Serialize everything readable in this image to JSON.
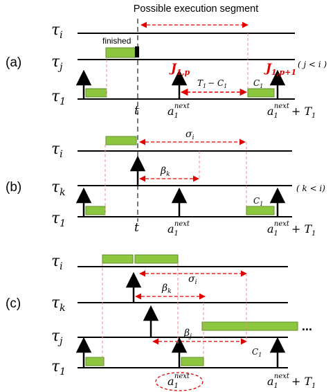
{
  "header": {
    "title": "Possible execution segment"
  },
  "panels": {
    "a": {
      "label": "(a)",
      "finished": "finished",
      "cond": "( j < i )",
      "J_p": "J",
      "J_p_sub": "1,p",
      "J_p1": "J",
      "J_p1_sub": "1,p+1",
      "T_minus_C": "T",
      "T_minus_C_rest": "1 − C",
      "T_minus_C_sub": "1"
    },
    "b": {
      "label": "(b)",
      "cond": "( k < i)"
    },
    "c": {
      "label": "(c)",
      "dots": "..."
    }
  },
  "symbols": {
    "tau": "τ",
    "i": "i",
    "j": "j",
    "k": "k",
    "one": "1",
    "t": "t",
    "a": "a",
    "next": "next",
    "plusT": "+ T",
    "C": "C",
    "sigma": "σ",
    "beta": "β"
  },
  "colors": {
    "exec_green": "#8dc63f",
    "exec_edge": "#5d8f2a",
    "red": "#e00000",
    "guide_red": "#f08a8a",
    "dash_gray": "#777777"
  }
}
